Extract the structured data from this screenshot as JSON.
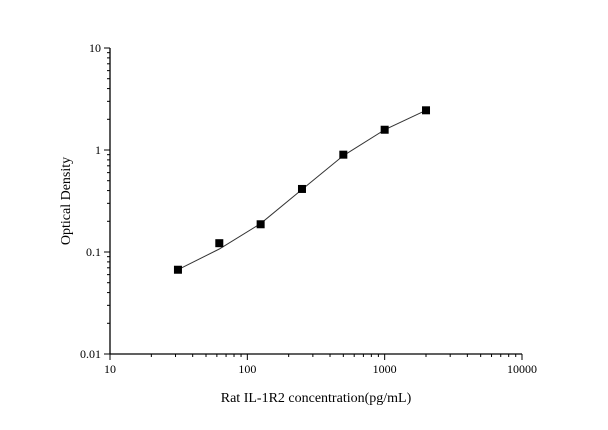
{
  "chart_data": {
    "type": "scatter",
    "title": "",
    "xlabel": "Rat IL-1R2 concentration(pg/mL)",
    "ylabel": "Optical Density",
    "x_scale": "log",
    "y_scale": "log",
    "xlim": [
      10,
      10000
    ],
    "ylim": [
      0.01,
      10
    ],
    "x_ticks": [
      "10",
      "100",
      "1000",
      "10000"
    ],
    "y_ticks": [
      "0.01",
      "0.1",
      "1",
      "10"
    ],
    "grid": false,
    "legend": "none",
    "marker": "square",
    "color": "#000000",
    "x": [
      31.25,
      62.5,
      125,
      250,
      500,
      1000,
      2000
    ],
    "series": [
      {
        "values": [
          0.067,
          0.122,
          0.187,
          0.415,
          0.9,
          1.58,
          2.45
        ]
      }
    ],
    "fit_curve": {
      "x": [
        31.25,
        62.5,
        125,
        250,
        500,
        1000,
        2000
      ],
      "values": [
        0.067,
        0.107,
        0.19,
        0.41,
        0.88,
        1.58,
        2.45
      ]
    }
  }
}
